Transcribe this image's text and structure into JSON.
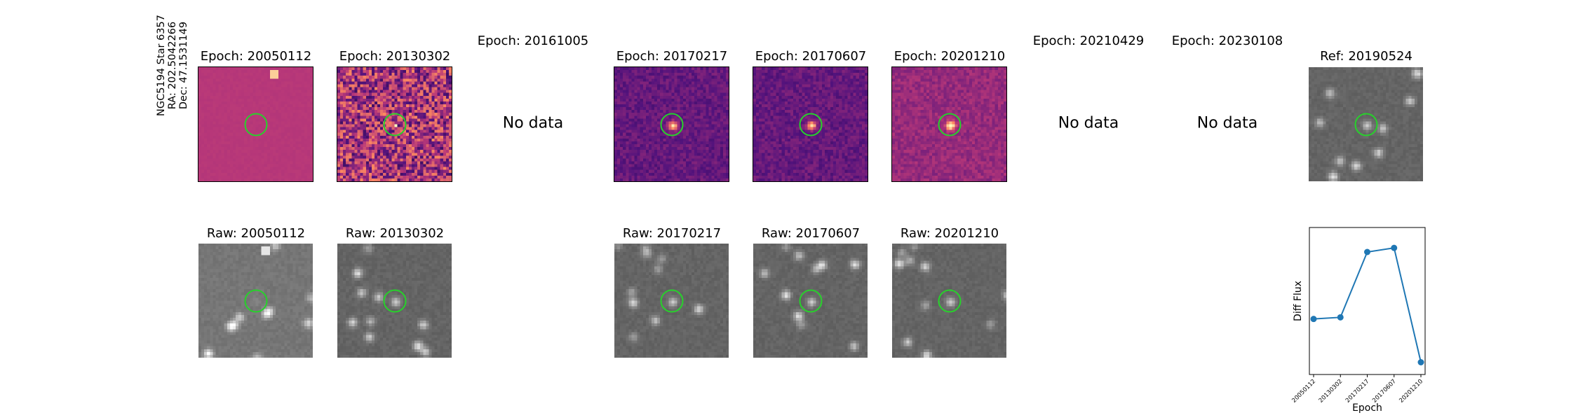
{
  "object_label": {
    "line1": "NGC5194 Star 6357",
    "line2": "RA: 202.5042266",
    "line3": "Dec: 47.1531149"
  },
  "epoch_titles": [
    "Epoch: 20050112",
    "Epoch: 20130302",
    "Epoch: 20161005",
    "Epoch: 20170217",
    "Epoch: 20170607",
    "Epoch: 20201210",
    "Epoch: 20210429",
    "Epoch: 20230108"
  ],
  "ref_title": "Ref: 20190524",
  "no_data_text": "No data",
  "raw_titles": [
    "Raw: 20050112",
    "Raw: 20130302",
    "Raw: 20170217",
    "Raw: 20170607",
    "Raw: 20201210"
  ],
  "colors": {
    "aperture_ring": "#27d22b",
    "series": "#1f77b4",
    "diff_colormap": "magma",
    "raw_colormap": "gray"
  },
  "chart_data": {
    "type": "line",
    "title": "",
    "xlabel": "Epoch",
    "ylabel": "Diff Flux",
    "categories": [
      "20050112",
      "20130302",
      "20170217",
      "20170607",
      "20201210"
    ],
    "series": [
      {
        "values": [
          0.18,
          0.2,
          1.0,
          1.05,
          -0.35
        ]
      }
    ],
    "ylim": [
      -0.5,
      1.3
    ],
    "yticks_shown": false,
    "grid": false,
    "marker": "circle"
  }
}
